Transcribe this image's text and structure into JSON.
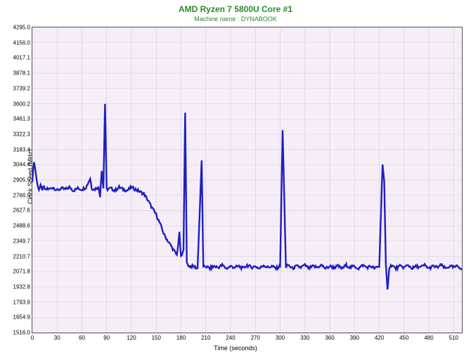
{
  "chart": {
    "type": "line",
    "title": "AMD Ryzen 7 5800U Core #1",
    "subtitle": "Machine name : DYNABOOK",
    "title_color": "#2a8a2a",
    "subtitle_color": "#2a8a2a",
    "xlabel": "Time (seconds)",
    "ylabel": "Clock Speed (MHz)",
    "background_color": "#f5eef7",
    "grid_color": "#d8c8db",
    "border_color": "#555555",
    "line_color": "#2020c0",
    "line_width": 1.1,
    "xlim": [
      0,
      520
    ],
    "ylim": [
      1516,
      4295
    ],
    "xtick_step": 30,
    "yticks": [
      1516.0,
      1654.9,
      1793.9,
      1932.8,
      2071.8,
      2210.7,
      2349.7,
      2488.6,
      2627.6,
      2766.5,
      2905.5,
      3044.4,
      3183.4,
      3322.3,
      3461.3,
      3600.2,
      3739.2,
      3878.1,
      4017.1,
      4156.0,
      4295.0
    ],
    "xticks": [
      0,
      30,
      60,
      90,
      120,
      150,
      180,
      210,
      240,
      270,
      300,
      330,
      360,
      390,
      420,
      450,
      480,
      510
    ],
    "series": [
      [
        0,
        2900
      ],
      [
        2,
        3080
      ],
      [
        4,
        2980
      ],
      [
        6,
        2870
      ],
      [
        8,
        2820
      ],
      [
        10,
        2850
      ],
      [
        12,
        2820
      ],
      [
        14,
        2840
      ],
      [
        16,
        2810
      ],
      [
        18,
        2830
      ],
      [
        20,
        2820
      ],
      [
        25,
        2840
      ],
      [
        30,
        2810
      ],
      [
        35,
        2830
      ],
      [
        40,
        2820
      ],
      [
        45,
        2840
      ],
      [
        50,
        2810
      ],
      [
        55,
        2830
      ],
      [
        60,
        2820
      ],
      [
        65,
        2840
      ],
      [
        70,
        2920
      ],
      [
        72,
        2830
      ],
      [
        75,
        2820
      ],
      [
        80,
        2840
      ],
      [
        82,
        2760
      ],
      [
        84,
        3000
      ],
      [
        86,
        2830
      ],
      [
        88,
        3600
      ],
      [
        90,
        2820
      ],
      [
        95,
        2830
      ],
      [
        100,
        2810
      ],
      [
        105,
        2840
      ],
      [
        110,
        2820
      ],
      [
        115,
        2810
      ],
      [
        120,
        2840
      ],
      [
        125,
        2820
      ],
      [
        130,
        2800
      ],
      [
        135,
        2780
      ],
      [
        140,
        2720
      ],
      [
        145,
        2650
      ],
      [
        150,
        2590
      ],
      [
        155,
        2500
      ],
      [
        160,
        2400
      ],
      [
        165,
        2340
      ],
      [
        170,
        2280
      ],
      [
        175,
        2220
      ],
      [
        178,
        2420
      ],
      [
        180,
        2200
      ],
      [
        183,
        2260
      ],
      [
        185,
        3530
      ],
      [
        187,
        2150
      ],
      [
        190,
        2120
      ],
      [
        195,
        2120
      ],
      [
        200,
        2100
      ],
      [
        205,
        3080
      ],
      [
        207,
        2110
      ],
      [
        210,
        2120
      ],
      [
        215,
        2100
      ],
      [
        220,
        2120
      ],
      [
        225,
        2110
      ],
      [
        230,
        2130
      ],
      [
        235,
        2100
      ],
      [
        240,
        2120
      ],
      [
        245,
        2110
      ],
      [
        250,
        2120
      ],
      [
        255,
        2100
      ],
      [
        260,
        2130
      ],
      [
        265,
        2110
      ],
      [
        270,
        2120
      ],
      [
        275,
        2100
      ],
      [
        280,
        2130
      ],
      [
        285,
        2110
      ],
      [
        290,
        2120
      ],
      [
        295,
        2100
      ],
      [
        300,
        2120
      ],
      [
        303,
        3360
      ],
      [
        305,
        2740
      ],
      [
        307,
        2110
      ],
      [
        310,
        2130
      ],
      [
        315,
        2100
      ],
      [
        320,
        2120
      ],
      [
        325,
        2110
      ],
      [
        330,
        2130
      ],
      [
        335,
        2100
      ],
      [
        340,
        2120
      ],
      [
        345,
        2110
      ],
      [
        350,
        2130
      ],
      [
        355,
        2100
      ],
      [
        360,
        2120
      ],
      [
        365,
        2110
      ],
      [
        370,
        2120
      ],
      [
        375,
        2100
      ],
      [
        380,
        2130
      ],
      [
        385,
        2110
      ],
      [
        390,
        2120
      ],
      [
        395,
        2100
      ],
      [
        400,
        2130
      ],
      [
        405,
        2110
      ],
      [
        410,
        2120
      ],
      [
        415,
        2100
      ],
      [
        420,
        2120
      ],
      [
        424,
        3060
      ],
      [
        426,
        2890
      ],
      [
        428,
        2120
      ],
      [
        430,
        1900
      ],
      [
        432,
        2110
      ],
      [
        435,
        2130
      ],
      [
        440,
        2100
      ],
      [
        445,
        2120
      ],
      [
        450,
        2110
      ],
      [
        455,
        2130
      ],
      [
        460,
        2100
      ],
      [
        465,
        2120
      ],
      [
        470,
        2110
      ],
      [
        475,
        2130
      ],
      [
        480,
        2100
      ],
      [
        485,
        2120
      ],
      [
        490,
        2110
      ],
      [
        495,
        2130
      ],
      [
        500,
        2100
      ],
      [
        505,
        2120
      ],
      [
        510,
        2110
      ],
      [
        515,
        2120
      ],
      [
        520,
        2100
      ]
    ],
    "noise": 28
  }
}
